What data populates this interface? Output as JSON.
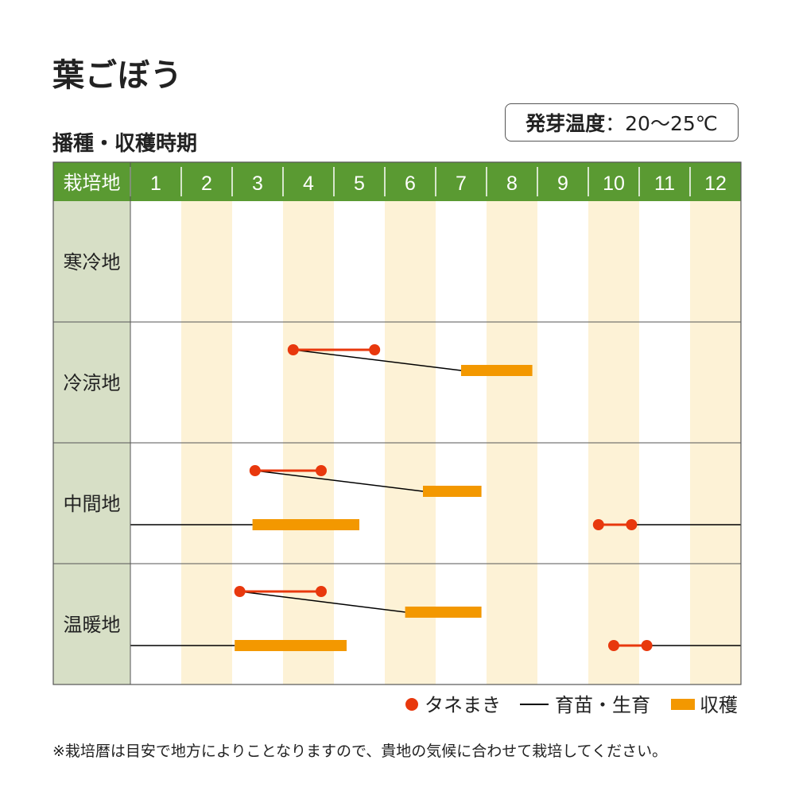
{
  "title": "葉ごぼう",
  "subtitle": "播種・収穫時期",
  "germination": {
    "label": "発芽温度",
    "value": "20〜25℃"
  },
  "note": "※栽培暦は目安で地方によりことなりますので、貴地の気候に合わせて栽培してください。",
  "colors": {
    "header_green": "#5a9a32",
    "region_green": "#d7dfc6",
    "stripe": "#fdf2d6",
    "sowing": "#e8380d",
    "growing": "#000000",
    "harvest": "#f39800"
  },
  "chart_data": {
    "type": "schedule",
    "header_label": "栽培地",
    "months": [
      "1",
      "2",
      "3",
      "4",
      "5",
      "6",
      "7",
      "8",
      "9",
      "10",
      "11",
      "12"
    ],
    "legend": [
      {
        "key": "sowing",
        "label": "タネまき",
        "icon": "dot-line"
      },
      {
        "key": "growing",
        "label": "育苗・生育",
        "icon": "line"
      },
      {
        "key": "harvest",
        "label": "収穫",
        "icon": "bar"
      }
    ],
    "regions": [
      {
        "name": "寒冷地",
        "rows": []
      },
      {
        "name": "冷涼地",
        "rows": [
          {
            "sow": [
              4.2,
              5.8
            ],
            "grow": [
              4.2,
              7.5
            ],
            "harvest": [
              7.5,
              8.9
            ]
          }
        ]
      },
      {
        "name": "中間地",
        "rows": [
          {
            "sow": [
              3.45,
              4.75
            ],
            "grow": [
              3.45,
              6.75
            ],
            "harvest": [
              6.75,
              7.9
            ]
          },
          {
            "sow": [
              10.2,
              10.85
            ],
            "grow_after": [
              10.85,
              13.0
            ],
            "grow_before": [
              1.0,
              3.4
            ],
            "harvest": [
              3.4,
              5.5
            ]
          }
        ]
      },
      {
        "name": "温暖地",
        "rows": [
          {
            "sow": [
              3.15,
              4.75
            ],
            "grow": [
              3.15,
              6.4
            ],
            "harvest": [
              6.4,
              7.9
            ]
          },
          {
            "sow": [
              10.5,
              11.15
            ],
            "grow_after": [
              11.15,
              13.0
            ],
            "grow_before": [
              1.0,
              3.05
            ],
            "harvest": [
              3.05,
              5.25
            ]
          }
        ]
      }
    ]
  }
}
